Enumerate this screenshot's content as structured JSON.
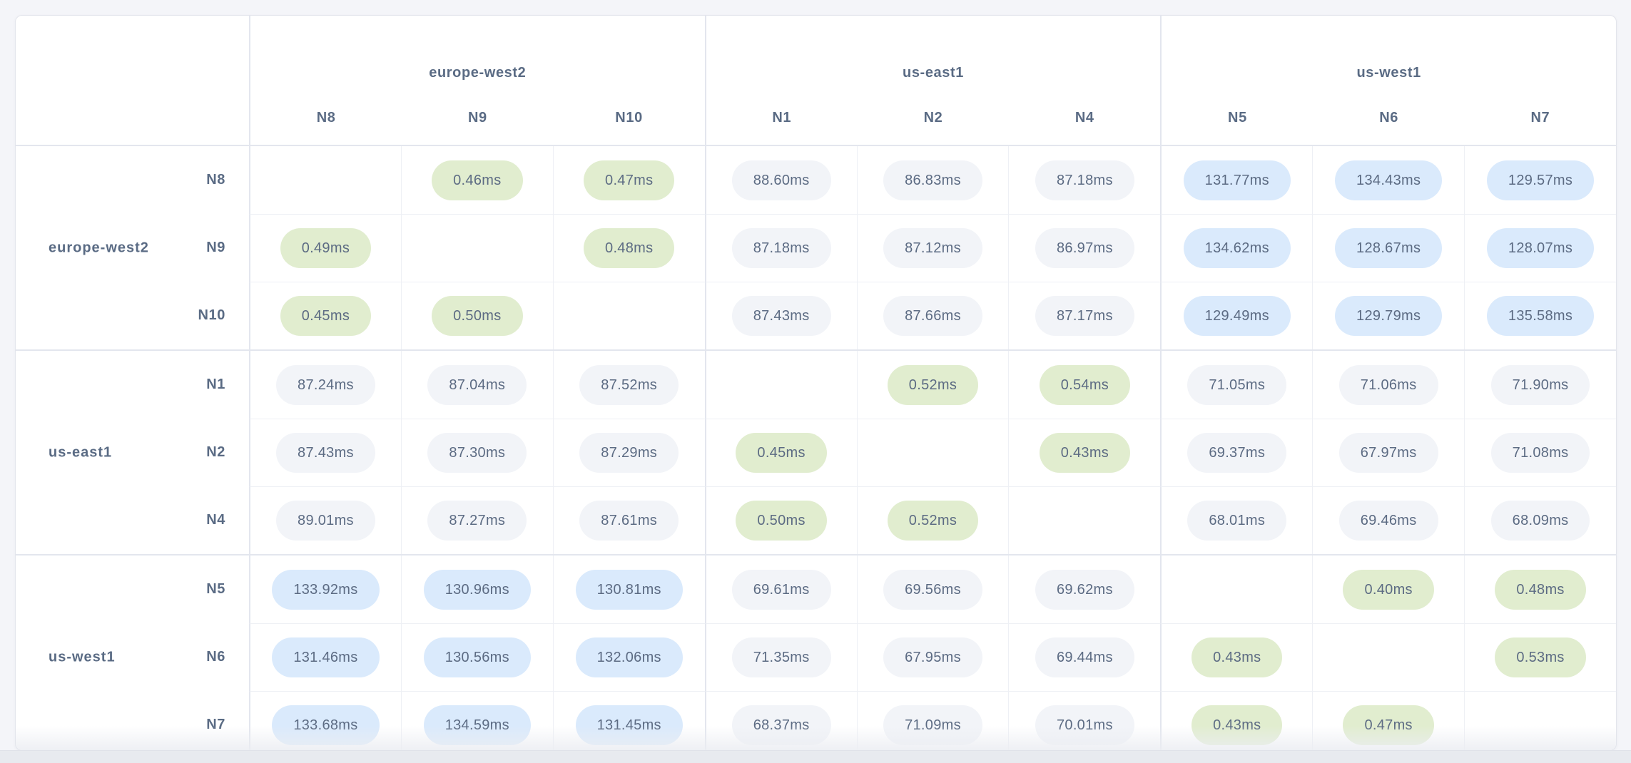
{
  "unit": "ms",
  "colors": {
    "intra_region_pill": "#e1edcf",
    "inter_region_pill": "#f2f4f8",
    "high_latency_pill": "#daeafc",
    "label_text": "#5a6b84",
    "pill_text": "#5c6b83"
  },
  "thresholds": {
    "intra_region_max_ms": 1,
    "high_latency_min_ms": 120
  },
  "chart_data": {
    "type": "heatmap",
    "title": "",
    "groups": [
      {
        "label": "europe-west2",
        "nodes": [
          "N8",
          "N9",
          "N10"
        ]
      },
      {
        "label": "us-east1",
        "nodes": [
          "N1",
          "N2",
          "N4"
        ]
      },
      {
        "label": "us-west1",
        "nodes": [
          "N5",
          "N6",
          "N7"
        ]
      }
    ],
    "row_labels": [
      "N8",
      "N9",
      "N10",
      "N1",
      "N2",
      "N4",
      "N5",
      "N6",
      "N7"
    ],
    "col_labels": [
      "N8",
      "N9",
      "N10",
      "N1",
      "N2",
      "N4",
      "N5",
      "N6",
      "N7"
    ],
    "matrix_ms": [
      [
        null,
        0.46,
        0.47,
        88.6,
        86.83,
        87.18,
        131.77,
        134.43,
        129.57
      ],
      [
        0.49,
        null,
        0.48,
        87.18,
        87.12,
        86.97,
        134.62,
        128.67,
        128.07
      ],
      [
        0.45,
        0.5,
        null,
        87.43,
        87.66,
        87.17,
        129.49,
        129.79,
        135.58
      ],
      [
        87.24,
        87.04,
        87.52,
        null,
        0.52,
        0.54,
        71.05,
        71.06,
        71.9
      ],
      [
        87.43,
        87.3,
        87.29,
        0.45,
        null,
        0.43,
        69.37,
        67.97,
        71.08
      ],
      [
        89.01,
        87.27,
        87.61,
        0.5,
        0.52,
        null,
        68.01,
        69.46,
        68.09
      ],
      [
        133.92,
        130.96,
        130.81,
        69.61,
        69.56,
        69.62,
        null,
        0.4,
        0.48
      ],
      [
        131.46,
        130.56,
        132.06,
        71.35,
        67.95,
        69.44,
        0.43,
        null,
        0.53
      ],
      [
        133.68,
        134.59,
        131.45,
        68.37,
        71.09,
        70.01,
        0.43,
        0.47,
        null
      ]
    ]
  }
}
